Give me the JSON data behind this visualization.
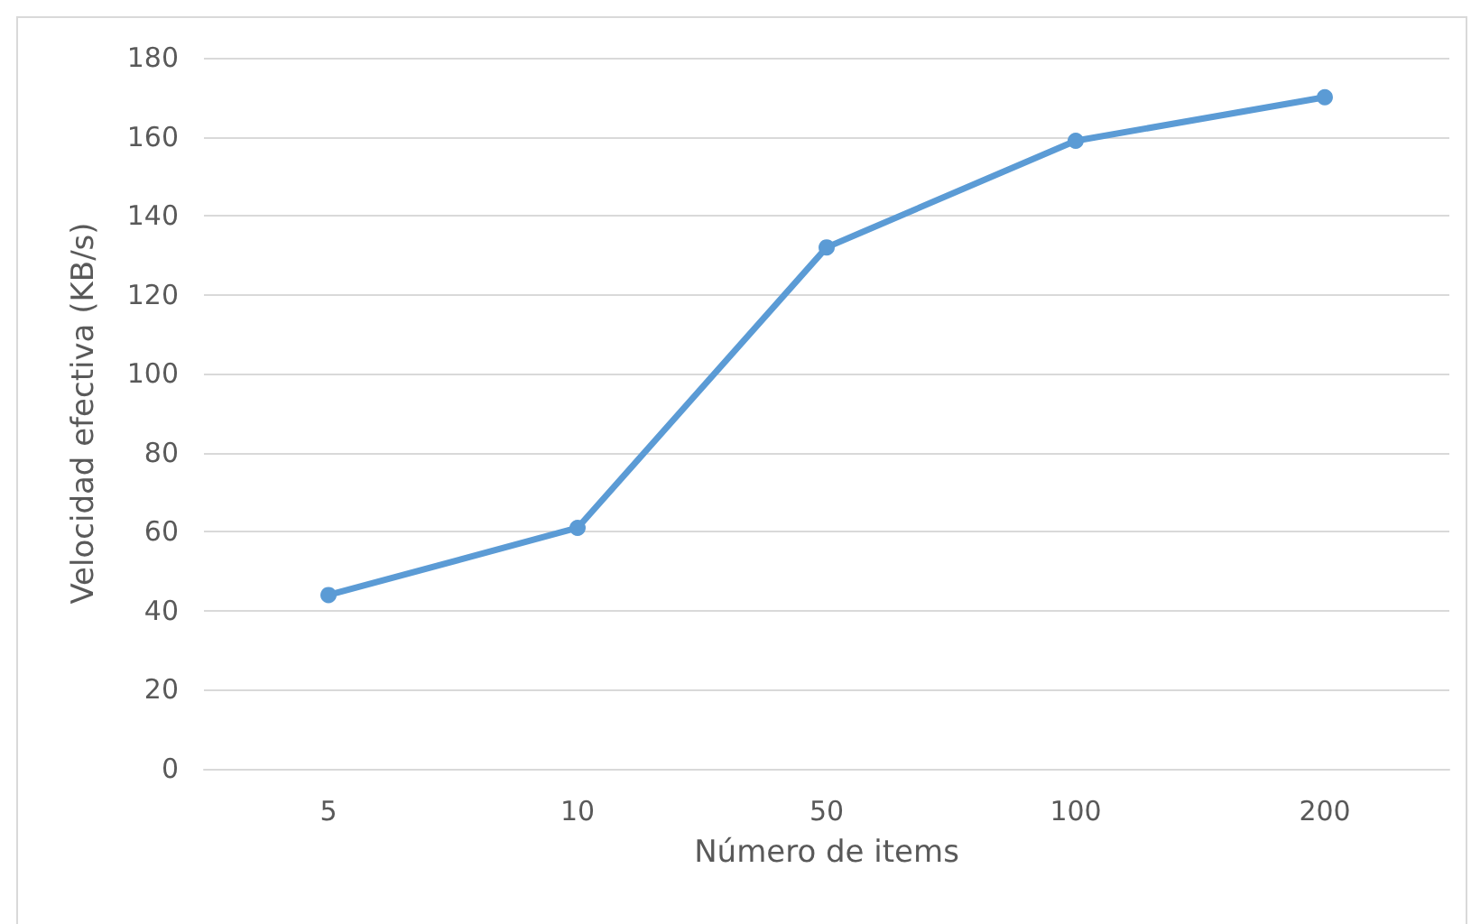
{
  "chart_data": {
    "type": "line",
    "xlabel": "Número de items",
    "ylabel": "Velocidad efectiva (KB/s)",
    "categories": [
      "5",
      "10",
      "50",
      "100",
      "200"
    ],
    "series": [
      {
        "color": "#5b9bd5",
        "values": [
          44,
          61,
          132,
          159,
          170
        ]
      }
    ],
    "ylim": [
      0,
      180
    ],
    "yticks": [
      0,
      20,
      40,
      60,
      80,
      100,
      120,
      140,
      160,
      180
    ],
    "grid": "y",
    "marker": "circle",
    "line_style": "solid"
  }
}
